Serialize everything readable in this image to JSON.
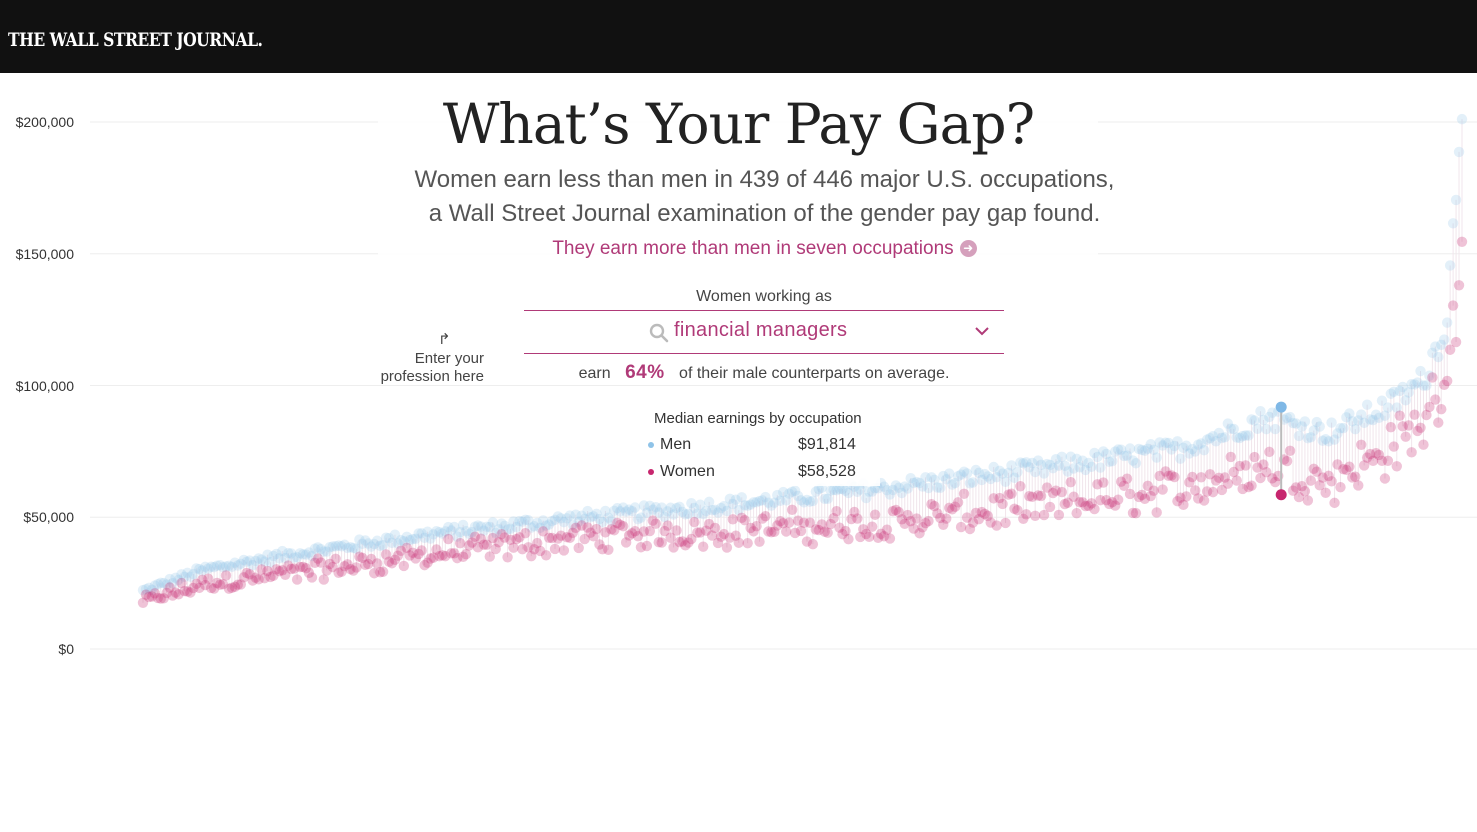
{
  "header": {
    "logo_text": "THE WALL STREET JOURNAL."
  },
  "title": "What’s Your Pay Gap?",
  "subtitle_lines": [
    "Women earn less than men in 439 of 446 major U.S. occupations,",
    "a Wall Street Journal examination of the gender pay gap found."
  ],
  "link_text": "They earn more than men in seven occupations",
  "selector": {
    "label": "Women working as",
    "value": "financial managers",
    "earn_prefix": "earn",
    "earn_percent": "64%",
    "earn_suffix": "of their male counterparts on average."
  },
  "hint": {
    "line1": "Enter your",
    "line2": "profession here"
  },
  "legend": {
    "title": "Median earnings by occupation",
    "men_label": "Men",
    "men_value": "$91,814",
    "women_label": "Women",
    "women_value": "$58,528"
  },
  "colors": {
    "men": "#8fc3e8",
    "women": "#c7266e",
    "accent": "#b03a78",
    "header_bg": "#111111"
  },
  "icons": {
    "search": "search-icon",
    "dropdown": "chevron-down-icon",
    "link_arrow": "arrow-right-circle-icon",
    "hint_arrow": "curved-arrow-icon"
  },
  "chart_data": {
    "type": "scatter",
    "description_axis": "occupations sorted by men's median earnings",
    "y_ticks": [
      "$0",
      "$50,000",
      "$100,000",
      "$150,000",
      "$200,000"
    ],
    "y_tick_values": [
      0,
      50000,
      100000,
      150000,
      200000
    ],
    "ylim": [
      0,
      210000
    ],
    "x_count": 446,
    "series": [
      {
        "name": "Men",
        "color": "#8fc3e8"
      },
      {
        "name": "Women",
        "color": "#c7266e"
      }
    ],
    "highlight": {
      "occupation": "financial managers",
      "index": 384,
      "men": 91814,
      "women": 58528
    },
    "anchors_men": [
      [
        0,
        22000
      ],
      [
        20,
        30000
      ],
      [
        50,
        36000
      ],
      [
        100,
        44000
      ],
      [
        150,
        50000
      ],
      [
        200,
        55000
      ],
      [
        250,
        61000
      ],
      [
        300,
        68000
      ],
      [
        350,
        76000
      ],
      [
        380,
        88000
      ],
      [
        400,
        82000
      ],
      [
        420,
        92000
      ],
      [
        432,
        102000
      ],
      [
        440,
        125000
      ],
      [
        445,
        210000
      ]
    ],
    "gap_ratio_anchors": [
      [
        0,
        0.82
      ],
      [
        60,
        0.8
      ],
      [
        150,
        0.85
      ],
      [
        250,
        0.78
      ],
      [
        350,
        0.8
      ],
      [
        400,
        0.78
      ],
      [
        440,
        0.85
      ],
      [
        445,
        0.7
      ]
    ]
  }
}
